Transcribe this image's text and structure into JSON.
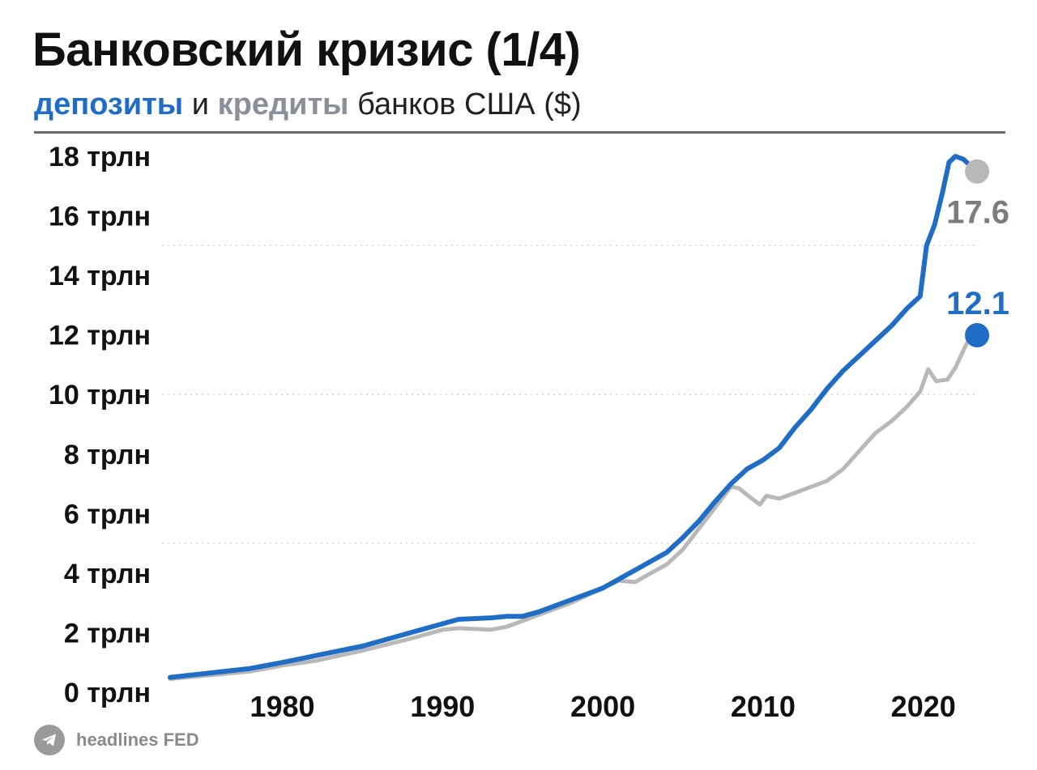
{
  "title": "Банковский кризис (1/4)",
  "subtitle": {
    "deposits_word": "депозиты",
    "and_word": "и",
    "credits_word": "кредиты",
    "rest": "банков США ($)"
  },
  "footer": {
    "icon": "telegram-icon",
    "text": "headlines FED"
  },
  "colors": {
    "deposits": "#1f6dc4",
    "credits": "#b8b8b8",
    "credits_label": "#7d7d7d",
    "subtitle_credits": "#8a8f99",
    "grid": "#d6d6d6"
  },
  "chart_data": {
    "type": "line",
    "title": "Банковский кризис (1/4)",
    "subtitle": "депозиты и кредиты банков США ($)",
    "xlabel": "",
    "ylabel": "",
    "xlim": [
      1973,
      2023.3
    ],
    "ylim": [
      0,
      18
    ],
    "x_ticks": [
      1980,
      1990,
      2000,
      2010,
      2020
    ],
    "y_ticks": [
      0,
      2,
      4,
      6,
      8,
      10,
      12,
      14,
      16,
      18
    ],
    "y_tick_labels": [
      "0 трлн",
      "2 трлн",
      "4 трлн",
      "6 трлн",
      "8 трлн",
      "10 трлн",
      "12 трлн",
      "14 трлн",
      "16 трлн",
      "18 трлн"
    ],
    "grid": "dotted horizontal lines at 5, 10, 15",
    "grid_lines": [
      5,
      10,
      15
    ],
    "legend": "none",
    "series": [
      {
        "name": "кредиты",
        "color": "#b8b8b8",
        "end_label": "12.1",
        "points": [
          [
            1973,
            0.45
          ],
          [
            1975,
            0.55
          ],
          [
            1978,
            0.7
          ],
          [
            1980,
            0.9
          ],
          [
            1982,
            1.05
          ],
          [
            1985,
            1.4
          ],
          [
            1988,
            1.8
          ],
          [
            1990,
            2.1
          ],
          [
            1991,
            2.15
          ],
          [
            1993,
            2.1
          ],
          [
            1994,
            2.2
          ],
          [
            1996,
            2.6
          ],
          [
            1998,
            3.0
          ],
          [
            2000,
            3.5
          ],
          [
            2001,
            3.75
          ],
          [
            2002,
            3.7
          ],
          [
            2003,
            4.0
          ],
          [
            2004,
            4.3
          ],
          [
            2005,
            4.8
          ],
          [
            2006,
            5.5
          ],
          [
            2007,
            6.2
          ],
          [
            2008,
            6.9
          ],
          [
            2008.5,
            6.85
          ],
          [
            2009.3,
            6.5
          ],
          [
            2009.8,
            6.3
          ],
          [
            2010.2,
            6.6
          ],
          [
            2011,
            6.5
          ],
          [
            2012,
            6.7
          ],
          [
            2013,
            6.9
          ],
          [
            2014,
            7.1
          ],
          [
            2015,
            7.5
          ],
          [
            2016,
            8.1
          ],
          [
            2017,
            8.7
          ],
          [
            2018,
            9.1
          ],
          [
            2019,
            9.6
          ],
          [
            2019.8,
            10.1
          ],
          [
            2020.3,
            10.85
          ],
          [
            2020.8,
            10.45
          ],
          [
            2021.5,
            10.5
          ],
          [
            2022,
            10.9
          ],
          [
            2022.6,
            11.6
          ],
          [
            2023.1,
            12.1
          ]
        ]
      },
      {
        "name": "депозиты",
        "color": "#1f6dc4",
        "end_label": "17.6",
        "points": [
          [
            1973,
            0.5
          ],
          [
            1975,
            0.62
          ],
          [
            1978,
            0.8
          ],
          [
            1980,
            1.0
          ],
          [
            1982,
            1.22
          ],
          [
            1985,
            1.55
          ],
          [
            1988,
            2.0
          ],
          [
            1990,
            2.3
          ],
          [
            1991,
            2.45
          ],
          [
            1993,
            2.5
          ],
          [
            1994,
            2.55
          ],
          [
            1995,
            2.55
          ],
          [
            1996,
            2.7
          ],
          [
            1998,
            3.1
          ],
          [
            2000,
            3.5
          ],
          [
            2002,
            4.1
          ],
          [
            2004,
            4.7
          ],
          [
            2005,
            5.2
          ],
          [
            2006,
            5.75
          ],
          [
            2007,
            6.4
          ],
          [
            2008,
            7.0
          ],
          [
            2009,
            7.5
          ],
          [
            2010,
            7.8
          ],
          [
            2011,
            8.2
          ],
          [
            2012,
            8.9
          ],
          [
            2013,
            9.5
          ],
          [
            2014,
            10.2
          ],
          [
            2015,
            10.8
          ],
          [
            2016,
            11.3
          ],
          [
            2017,
            11.8
          ],
          [
            2018,
            12.3
          ],
          [
            2019,
            12.9
          ],
          [
            2019.8,
            13.3
          ],
          [
            2020.2,
            15.0
          ],
          [
            2020.7,
            15.7
          ],
          [
            2021.2,
            16.8
          ],
          [
            2021.6,
            17.8
          ],
          [
            2022,
            18.0
          ],
          [
            2022.5,
            17.9
          ],
          [
            2023.1,
            17.6
          ]
        ]
      }
    ]
  }
}
